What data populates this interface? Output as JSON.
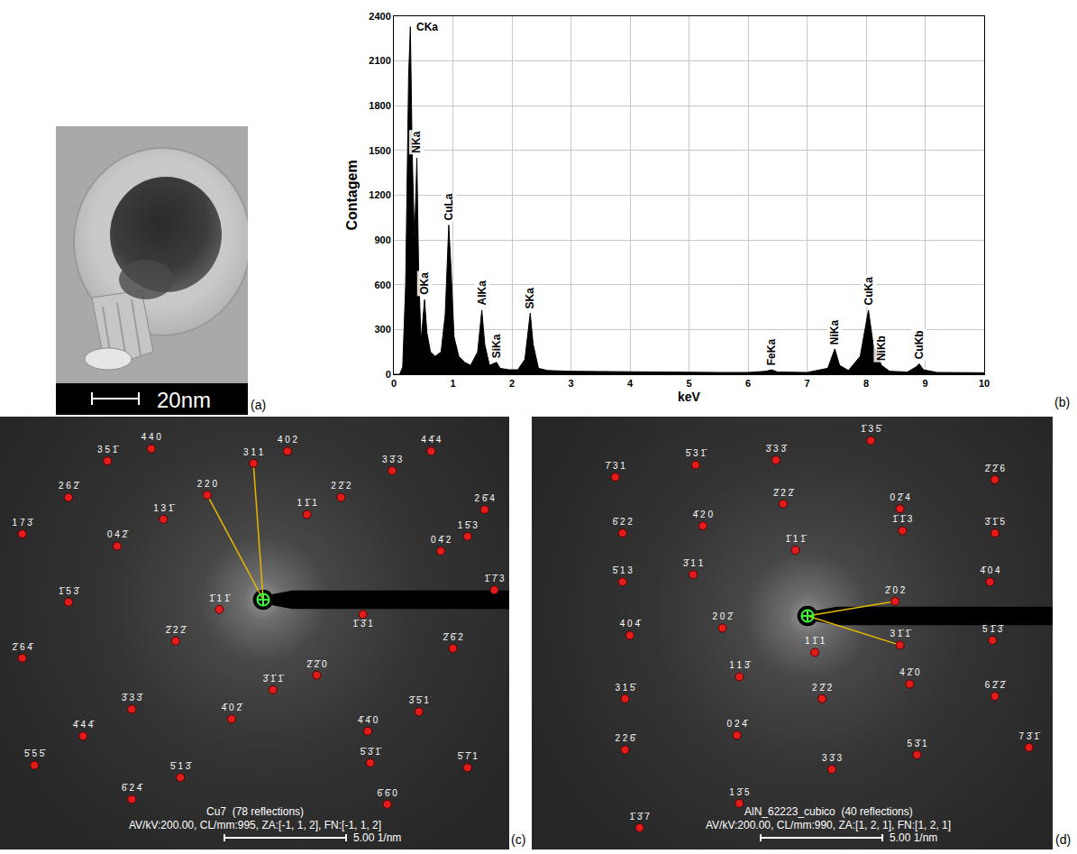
{
  "chart_data": {
    "type": "area",
    "panel_label": "(b)",
    "x_label": "keV",
    "y_label": "Contagem",
    "color": "#000000",
    "grid": true,
    "xlim": [
      0,
      10
    ],
    "xticks": [
      0,
      1,
      2,
      3,
      4,
      5,
      6,
      7,
      8,
      9,
      10
    ],
    "ylim": [
      0,
      2400
    ],
    "yticks": [
      0,
      300,
      600,
      900,
      1200,
      1500,
      1800,
      2100,
      2400
    ],
    "x": [
      0,
      0.1,
      0.15,
      0.2,
      0.25,
      0.28,
      0.31,
      0.35,
      0.39,
      0.42,
      0.46,
      0.52,
      0.56,
      0.62,
      0.7,
      0.8,
      0.87,
      0.93,
      0.97,
      1.02,
      1.1,
      1.2,
      1.3,
      1.42,
      1.49,
      1.54,
      1.62,
      1.74,
      1.8,
      1.95,
      2.1,
      2.22,
      2.31,
      2.36,
      2.45,
      2.6,
      3,
      3.5,
      4,
      4.5,
      5,
      5.5,
      6,
      6.3,
      6.4,
      6.5,
      7,
      7.35,
      7.47,
      7.55,
      7.7,
      7.9,
      8.04,
      8.12,
      8.26,
      8.4,
      8.7,
      8.85,
      8.9,
      8.97,
      9.2,
      10
    ],
    "values": [
      0,
      0,
      50,
      600,
      2000,
      2330,
      1500,
      900,
      1450,
      700,
      220,
      500,
      280,
      150,
      120,
      150,
      400,
      1000,
      700,
      250,
      120,
      80,
      60,
      150,
      430,
      200,
      60,
      80,
      40,
      30,
      30,
      100,
      410,
      200,
      40,
      25,
      20,
      18,
      15,
      15,
      14,
      12,
      12,
      20,
      30,
      15,
      12,
      40,
      170,
      60,
      25,
      120,
      430,
      200,
      60,
      20,
      15,
      50,
      70,
      30,
      12,
      10
    ],
    "annotations": [
      {
        "text": "CKa",
        "x": 0.28,
        "y": 2330
      },
      {
        "text": "NKa",
        "x": 0.39,
        "y": 1450
      },
      {
        "text": "OKa",
        "x": 0.52,
        "y": 500
      },
      {
        "text": "CuLa",
        "x": 0.93,
        "y": 1000
      },
      {
        "text": "AlKa",
        "x": 1.49,
        "y": 430
      },
      {
        "text": "SiKa",
        "x": 1.74,
        "y": 80
      },
      {
        "text": "SKa",
        "x": 2.31,
        "y": 410
      },
      {
        "text": "FeKa",
        "x": 6.4,
        "y": 30
      },
      {
        "text": "NiKa",
        "x": 7.47,
        "y": 170
      },
      {
        "text": "CuKa",
        "x": 8.04,
        "y": 430
      },
      {
        "text": "NiKb",
        "x": 8.26,
        "y": 60
      },
      {
        "text": "CuKb",
        "x": 8.9,
        "y": 70
      }
    ]
  },
  "figure": {
    "panels": [
      {
        "panel_label": "(a)",
        "scale_bar": {
          "label": "20nm"
        }
      },
      {
        "panel_label": "(c)",
        "caption": "Cu7  (78 reflections)",
        "settings": "AV/kV:200.00, CL/mm:995, ZA:[-1, 1, 2], FN:[-1, 1, 2]",
        "scale_bar": {
          "value": 5,
          "label": "5.00 1/nm"
        },
        "measured": [
          "2 2 0",
          "3 1 1"
        ],
        "spots": [
          {
            "label": "4 4 0",
            "x": -4.6,
            "y": 6.2
          },
          {
            "label": "4 0 2",
            "x": 1.0,
            "y": 6.1
          },
          {
            "label": "4 4̄ 4",
            "x": 6.9,
            "y": 6.1
          },
          {
            "label": "3 5 1̄",
            "x": -6.4,
            "y": 5.7
          },
          {
            "label": "3 1 1",
            "x": -0.4,
            "y": 5.6
          },
          {
            "label": "2 2 0",
            "x": -2.3,
            "y": 4.3
          },
          {
            "label": "3 3̄ 3",
            "x": 5.3,
            "y": 5.3
          },
          {
            "label": "2 6 2̄",
            "x": -8.0,
            "y": 4.2
          },
          {
            "label": "2 2̄ 2",
            "x": 3.2,
            "y": 4.2
          },
          {
            "label": "2 6̄ 4",
            "x": 9.1,
            "y": 3.7
          },
          {
            "label": "1 3 1̄",
            "x": -4.1,
            "y": 3.3
          },
          {
            "label": "1 1̄ 1",
            "x": 1.8,
            "y": 3.5
          },
          {
            "label": "1 5̄ 3",
            "x": 8.4,
            "y": 2.6
          },
          {
            "label": "1 7 3̄",
            "x": -9.9,
            "y": 2.7
          },
          {
            "label": "0 4 2̄",
            "x": -6.0,
            "y": 2.2
          },
          {
            "label": "0 4̄ 2",
            "x": 7.3,
            "y": 2.0
          },
          {
            "label": "1̄ 1 1̄",
            "x": -1.8,
            "y": -0.4
          },
          {
            "label": "1̄ 3̄ 1",
            "x": 4.1,
            "y": -0.6
          },
          {
            "label": "1̄ 7̄ 3",
            "x": 9.5,
            "y": 0.4
          },
          {
            "label": "1̄ 5 3̄",
            "x": -8.0,
            "y": -0.1
          },
          {
            "label": "2̄ 2 2̄",
            "x": -3.6,
            "y": -1.7
          },
          {
            "label": "2̄ 2̄ 0",
            "x": 2.2,
            "y": -3.1
          },
          {
            "label": "2̄ 6 4̄",
            "x": -9.9,
            "y": -2.4
          },
          {
            "label": "2̄ 6̄ 2",
            "x": 7.8,
            "y": -2.0
          },
          {
            "label": "3̄ 1̄ 1̄",
            "x": 0.4,
            "y": -3.7
          },
          {
            "label": "3̄ 3 3̄",
            "x": -5.4,
            "y": -4.5
          },
          {
            "label": "3̄ 5̄ 1",
            "x": 6.4,
            "y": -4.6
          },
          {
            "label": "4̄ 4 4̄",
            "x": -7.4,
            "y": -5.6
          },
          {
            "label": "4̄ 0 2̄",
            "x": -1.3,
            "y": -4.9
          },
          {
            "label": "4̄ 4̄ 0",
            "x": 4.3,
            "y": -5.4
          },
          {
            "label": "5̄ 5 5̄",
            "x": -9.4,
            "y": -6.8
          },
          {
            "label": "5̄ 1 3̄",
            "x": -3.4,
            "y": -7.3
          },
          {
            "label": "5̄ 3̄ 1̄",
            "x": 4.4,
            "y": -6.7
          },
          {
            "label": "5̄ 7̄ 1",
            "x": 8.4,
            "y": -6.9
          },
          {
            "label": "6̄ 2 4̄",
            "x": -5.4,
            "y": -8.2
          },
          {
            "label": "6̄ 6̄ 0",
            "x": 5.1,
            "y": -8.4
          }
        ]
      },
      {
        "panel_label": "(d)",
        "caption": "AlN_62223_cubico  (40 reflections)",
        "settings": "AV/kV:200.00, CL/mm:990, ZA:[1, 2, 1], FN:[1, 2, 1]",
        "scale_bar": {
          "value": 5,
          "label": "5.00 1/nm"
        },
        "measured": [
          "2̄ 0 2",
          "3 1̄ 1̄"
        ],
        "spots": [
          {
            "label": "1̄ 3 5̄",
            "x": 2.6,
            "y": 7.2
          },
          {
            "label": "3̄ 3 3̄",
            "x": -1.3,
            "y": 6.4
          },
          {
            "label": "5̄ 3 1̄",
            "x": -4.6,
            "y": 6.2
          },
          {
            "label": "7̄ 3 1",
            "x": -7.9,
            "y": 5.7
          },
          {
            "label": "2̄ 2̄ 6",
            "x": 7.7,
            "y": 5.6
          },
          {
            "label": "2̄ 2 2̄",
            "x": -1.0,
            "y": 4.6
          },
          {
            "label": "0 2̄ 4",
            "x": 3.8,
            "y": 4.4
          },
          {
            "label": "4̄ 2 0",
            "x": -4.3,
            "y": 3.7
          },
          {
            "label": "6̄ 2 2",
            "x": -7.6,
            "y": 3.4
          },
          {
            "label": "1̄ 1̄ 3",
            "x": 3.9,
            "y": 3.5
          },
          {
            "label": "3̄ 1̄ 5",
            "x": 7.7,
            "y": 3.4
          },
          {
            "label": "1̄ 1 1̄",
            "x": -0.5,
            "y": 2.7
          },
          {
            "label": "3̄ 1 1",
            "x": -4.7,
            "y": 1.7
          },
          {
            "label": "5̄ 1 3",
            "x": -7.6,
            "y": 1.4
          },
          {
            "label": "4̄ 0 4",
            "x": 7.5,
            "y": 1.4
          },
          {
            "label": "2̄ 0 2",
            "x": 3.6,
            "y": 0.6
          },
          {
            "label": "2 0 2̄",
            "x": -3.5,
            "y": -0.5
          },
          {
            "label": "4 0 4̄",
            "x": -7.3,
            "y": -0.8
          },
          {
            "label": "5 1̄ 3̄",
            "x": 7.6,
            "y": -1.0
          },
          {
            "label": "3 1̄ 1̄",
            "x": 3.8,
            "y": -1.2
          },
          {
            "label": "1 1̄ 1",
            "x": 0.3,
            "y": -1.5
          },
          {
            "label": "1 1 3̄",
            "x": -2.8,
            "y": -2.5
          },
          {
            "label": "3 1 5̄",
            "x": -7.5,
            "y": -3.4
          },
          {
            "label": "4 2̄ 0",
            "x": 4.2,
            "y": -2.8
          },
          {
            "label": "6 2̄ 2̄",
            "x": 7.7,
            "y": -3.3
          },
          {
            "label": "2 2̄ 2",
            "x": 0.6,
            "y": -3.4
          },
          {
            "label": "0 2 4̄",
            "x": -2.9,
            "y": -4.9
          },
          {
            "label": "2 2 6̄",
            "x": -7.5,
            "y": -5.5
          },
          {
            "label": "5 3̄ 1",
            "x": 4.5,
            "y": -5.7
          },
          {
            "label": "7 3̄ 1̄",
            "x": 9.1,
            "y": -5.4
          },
          {
            "label": "3 3̄ 3",
            "x": 1.0,
            "y": -6.3
          },
          {
            "label": "1 3̄ 5",
            "x": -2.8,
            "y": -7.7
          },
          {
            "label": "1̄ 3̄ 7",
            "x": -6.9,
            "y": -8.7
          }
        ]
      }
    ]
  }
}
